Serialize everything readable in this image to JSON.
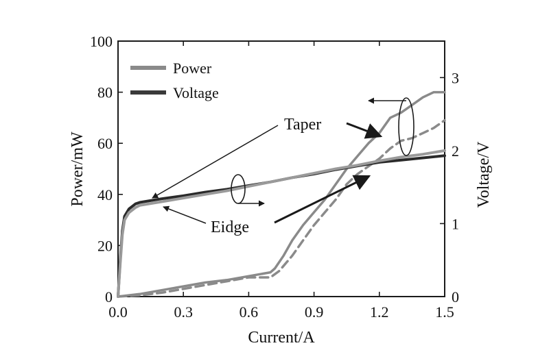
{
  "chart_data": {
    "type": "line",
    "xlabel": "Current/A",
    "ylabel": "Power/mW",
    "y2label": "Voltage/V",
    "xlim": [
      0,
      1.5
    ],
    "ylim": [
      0,
      100
    ],
    "y2lim": [
      0,
      3.5
    ],
    "x_ticks": [
      "0.0",
      "0.3",
      "0.6",
      "0.9",
      "1.2",
      "1.5"
    ],
    "y_ticks": [
      "0",
      "20",
      "40",
      "60",
      "80",
      "100"
    ],
    "y2_ticks": [
      "0",
      "1",
      "2",
      "3"
    ],
    "grid": false,
    "legend": {
      "placement": "top-left",
      "entries": [
        {
          "label": "Power",
          "color": "#8a8a8a"
        },
        {
          "label": "Voltage",
          "color": "#3a3a3a"
        }
      ]
    },
    "annotations": {
      "taper": "Taper",
      "edge": "Eidge"
    },
    "series": [
      {
        "axis": "left",
        "style": "solid",
        "color": "#8a8a8a",
        "x": [
          0.0,
          0.1,
          0.2,
          0.3,
          0.4,
          0.5,
          0.6,
          0.7,
          0.72,
          0.76,
          0.8,
          0.85,
          0.9,
          0.95,
          1.0,
          1.05,
          1.1,
          1.15,
          1.2,
          1.25,
          1.3,
          1.35,
          1.4,
          1.45,
          1.5
        ],
        "y": [
          0,
          1,
          2.5,
          4,
          5.5,
          6.5,
          8,
          9.5,
          11,
          16,
          22,
          28,
          33,
          38,
          44,
          50,
          55,
          60,
          64,
          70,
          72,
          75,
          78,
          80,
          80
        ]
      },
      {
        "axis": "left",
        "style": "dashed",
        "color": "#8a8a8a",
        "x": [
          0.0,
          0.1,
          0.2,
          0.3,
          0.4,
          0.5,
          0.6,
          0.7,
          0.74,
          0.8,
          0.85,
          0.9,
          0.95,
          1.0,
          1.05,
          1.1,
          1.15,
          1.2,
          1.25,
          1.3,
          1.35,
          1.4,
          1.45,
          1.5
        ],
        "y": [
          0,
          0.5,
          1.5,
          3,
          4.5,
          6,
          7.5,
          7.5,
          10,
          16,
          22,
          28,
          33,
          38,
          44,
          48,
          51,
          54,
          58,
          61,
          62,
          64,
          66,
          69
        ]
      },
      {
        "axis": "right",
        "style": "solid",
        "color": "#2a2a2a",
        "x": [
          0.0,
          0.01,
          0.02,
          0.03,
          0.05,
          0.08,
          0.1,
          0.2,
          0.3,
          0.4,
          0.5,
          0.6,
          0.7,
          0.8,
          0.9,
          1.0,
          1.1,
          1.2,
          1.3,
          1.4,
          1.5
        ],
        "y": [
          0.0,
          0.5,
          0.9,
          1.1,
          1.2,
          1.27,
          1.29,
          1.34,
          1.38,
          1.43,
          1.47,
          1.52,
          1.57,
          1.63,
          1.68,
          1.74,
          1.79,
          1.84,
          1.87,
          1.9,
          1.93
        ]
      },
      {
        "axis": "right",
        "style": "solid",
        "color": "#9a9a9a",
        "x": [
          0.0,
          0.01,
          0.02,
          0.03,
          0.05,
          0.08,
          0.1,
          0.2,
          0.3,
          0.4,
          0.5,
          0.6,
          0.7,
          0.8,
          0.9,
          1.0,
          1.1,
          1.2,
          1.3,
          1.4,
          1.5
        ],
        "y": [
          0.0,
          0.45,
          0.85,
          1.05,
          1.15,
          1.22,
          1.25,
          1.3,
          1.35,
          1.4,
          1.45,
          1.51,
          1.57,
          1.63,
          1.69,
          1.75,
          1.8,
          1.86,
          1.91,
          1.95,
          2.0
        ]
      }
    ]
  }
}
